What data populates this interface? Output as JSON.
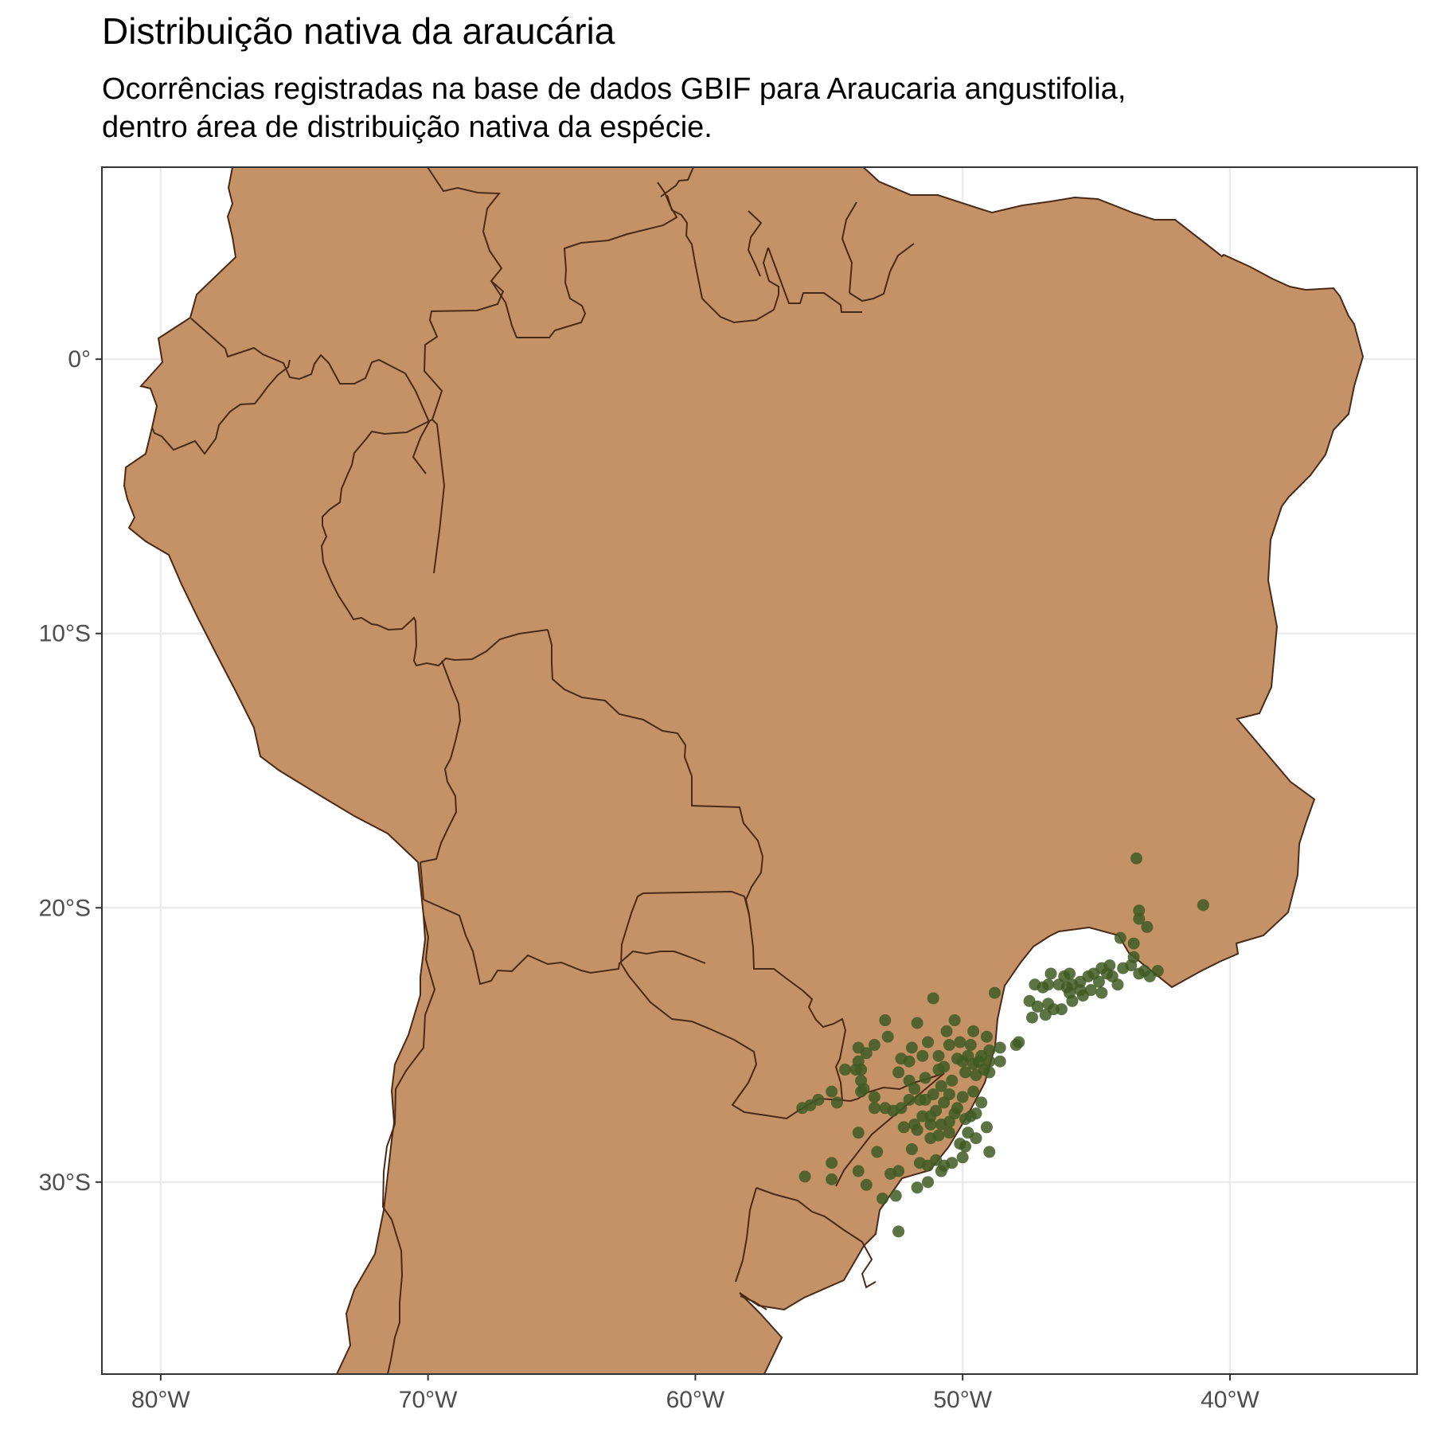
{
  "title": "Distribuição nativa da araucária",
  "subtitle_line1": "Ocorrências registradas na base de dados GBIF para Araucaria angustifolia,",
  "subtitle_line2": "dentro área de distribuição nativa da espécie.",
  "colors": {
    "land_fill": "#c49266",
    "border": "#4a2a17",
    "point": "#3f5a23",
    "grid": "#ebebeb",
    "panel_border": "#333333"
  },
  "map_extent": {
    "lon": [
      -82.2,
      -33.0
    ],
    "lat": [
      7.0,
      -37.0
    ]
  },
  "axes": {
    "x_ticks": [
      {
        "value": -80,
        "label": "80°W"
      },
      {
        "value": -70,
        "label": "70°W"
      },
      {
        "value": -60,
        "label": "60°W"
      },
      {
        "value": -50,
        "label": "50°W"
      },
      {
        "value": -40,
        "label": "40°W"
      }
    ],
    "y_ticks": [
      {
        "value": 0,
        "label": "0°"
      },
      {
        "value": -10,
        "label": "10°S"
      },
      {
        "value": -20,
        "label": "20°S"
      },
      {
        "value": -30,
        "label": "30°S"
      }
    ]
  },
  "occurrences": [
    [
      -43.5,
      -18.2
    ],
    [
      -41.0,
      -19.9
    ],
    [
      -43.4,
      -20.1
    ],
    [
      -43.4,
      -20.4
    ],
    [
      -43.1,
      -20.7
    ],
    [
      -44.1,
      -21.1
    ],
    [
      -43.6,
      -21.3
    ],
    [
      -43.6,
      -21.8
    ],
    [
      -43.7,
      -22.1
    ],
    [
      -42.7,
      -22.3
    ],
    [
      -43.0,
      -22.5
    ],
    [
      -43.4,
      -22.4
    ],
    [
      -44.0,
      -22.2
    ],
    [
      -44.5,
      -22.1
    ],
    [
      -44.8,
      -22.2
    ],
    [
      -45.1,
      -22.4
    ],
    [
      -45.3,
      -22.5
    ],
    [
      -45.6,
      -22.7
    ],
    [
      -45.9,
      -22.8
    ],
    [
      -46.1,
      -22.9
    ],
    [
      -46.4,
      -22.8
    ],
    [
      -46.8,
      -22.8
    ],
    [
      -47.0,
      -22.9
    ],
    [
      -46.7,
      -22.4
    ],
    [
      -46.0,
      -22.4
    ],
    [
      -44.4,
      -22.5
    ],
    [
      -44.2,
      -22.8
    ],
    [
      -44.8,
      -23.1
    ],
    [
      -45.2,
      -23.0
    ],
    [
      -45.5,
      -23.2
    ],
    [
      -45.9,
      -23.4
    ],
    [
      -46.3,
      -23.7
    ],
    [
      -46.8,
      -23.5
    ],
    [
      -47.2,
      -23.6
    ],
    [
      -46.6,
      -23.7
    ],
    [
      -46.9,
      -23.9
    ],
    [
      -47.5,
      -23.4
    ],
    [
      -47.4,
      -24.0
    ],
    [
      -48.0,
      -25.0
    ],
    [
      -48.8,
      -23.1
    ],
    [
      -49.1,
      -24.7
    ],
    [
      -49.6,
      -24.5
    ],
    [
      -50.1,
      -24.9
    ],
    [
      -50.5,
      -25.0
    ],
    [
      -50.2,
      -25.5
    ],
    [
      -49.8,
      -25.4
    ],
    [
      -49.4,
      -25.6
    ],
    [
      -49.2,
      -25.9
    ],
    [
      -49.0,
      -26.0
    ],
    [
      -49.5,
      -26.1
    ],
    [
      -49.9,
      -26.0
    ],
    [
      -50.4,
      -26.3
    ],
    [
      -50.9,
      -25.4
    ],
    [
      -51.3,
      -24.9
    ],
    [
      -51.5,
      -25.4
    ],
    [
      -51.9,
      -25.1
    ],
    [
      -52.0,
      -25.6
    ],
    [
      -52.3,
      -25.5
    ],
    [
      -52.4,
      -26.0
    ],
    [
      -52.0,
      -26.3
    ],
    [
      -51.8,
      -26.6
    ],
    [
      -51.4,
      -26.2
    ],
    [
      -50.8,
      -26.5
    ],
    [
      -50.5,
      -26.8
    ],
    [
      -50.0,
      -26.9
    ],
    [
      -49.6,
      -26.7
    ],
    [
      -49.3,
      -27.1
    ],
    [
      -49.5,
      -27.5
    ],
    [
      -49.9,
      -27.7
    ],
    [
      -50.3,
      -27.5
    ],
    [
      -50.7,
      -27.1
    ],
    [
      -51.0,
      -27.4
    ],
    [
      -51.2,
      -27.9
    ],
    [
      -51.5,
      -27.6
    ],
    [
      -51.7,
      -28.1
    ],
    [
      -51.2,
      -28.4
    ],
    [
      -50.9,
      -28.3
    ],
    [
      -50.5,
      -28.2
    ],
    [
      -50.1,
      -28.6
    ],
    [
      -49.8,
      -28.2
    ],
    [
      -49.5,
      -28.4
    ],
    [
      -49.1,
      -28.0
    ],
    [
      -49.0,
      -28.9
    ],
    [
      -50.0,
      -29.1
    ],
    [
      -50.4,
      -29.3
    ],
    [
      -50.7,
      -29.4
    ],
    [
      -51.0,
      -29.2
    ],
    [
      -51.3,
      -29.4
    ],
    [
      -51.6,
      -29.3
    ],
    [
      -51.9,
      -28.8
    ],
    [
      -52.4,
      -29.6
    ],
    [
      -52.7,
      -29.7
    ],
    [
      -53.2,
      -28.9
    ],
    [
      -52.3,
      -27.3
    ],
    [
      -52.6,
      -27.4
    ],
    [
      -52.9,
      -27.3
    ],
    [
      -53.3,
      -26.9
    ],
    [
      -53.7,
      -26.6
    ],
    [
      -53.8,
      -26.3
    ],
    [
      -54.0,
      -25.9
    ],
    [
      -54.4,
      -25.9
    ],
    [
      -53.9,
      -25.6
    ],
    [
      -53.6,
      -25.3
    ],
    [
      -53.9,
      -25.1
    ],
    [
      -53.3,
      -25.0
    ],
    [
      -52.8,
      -24.7
    ],
    [
      -52.9,
      -24.1
    ],
    [
      -51.7,
      -24.2
    ],
    [
      -51.1,
      -23.3
    ],
    [
      -50.3,
      -24.1
    ],
    [
      -49.0,
      -25.2
    ],
    [
      -48.6,
      -25.1
    ],
    [
      -49.7,
      -25.0
    ],
    [
      -50.6,
      -24.5
    ],
    [
      -50.9,
      -25.9
    ],
    [
      -51.1,
      -26.8
    ],
    [
      -51.6,
      -27.0
    ],
    [
      -50.2,
      -27.3
    ],
    [
      -49.7,
      -27.6
    ],
    [
      -51.4,
      -27.0
    ],
    [
      -52.0,
      -27.0
    ],
    [
      -53.3,
      -27.3
    ],
    [
      -53.8,
      -26.7
    ],
    [
      -53.8,
      -25.9
    ],
    [
      -54.9,
      -26.7
    ],
    [
      -55.4,
      -27.0
    ],
    [
      -55.7,
      -27.2
    ],
    [
      -56.0,
      -27.3
    ],
    [
      -54.7,
      -27.1
    ],
    [
      -53.9,
      -28.2
    ],
    [
      -54.9,
      -29.3
    ],
    [
      -55.9,
      -29.8
    ],
    [
      -54.9,
      -29.9
    ],
    [
      -53.9,
      -29.6
    ],
    [
      -53.6,
      -30.1
    ],
    [
      -53.0,
      -30.6
    ],
    [
      -52.5,
      -30.5
    ],
    [
      -52.4,
      -31.8
    ],
    [
      -51.7,
      -30.2
    ],
    [
      -51.3,
      -30.0
    ],
    [
      -50.8,
      -29.6
    ],
    [
      -49.9,
      -28.7
    ],
    [
      -50.5,
      -27.8
    ],
    [
      -50.8,
      -27.9
    ],
    [
      -51.2,
      -27.6
    ],
    [
      -51.8,
      -27.9
    ],
    [
      -52.2,
      -28.0
    ],
    [
      -49.3,
      -25.4
    ],
    [
      -49.6,
      -25.7
    ],
    [
      -50.0,
      -25.6
    ],
    [
      -50.7,
      -25.8
    ],
    [
      -49.0,
      -25.6
    ],
    [
      -48.6,
      -25.6
    ],
    [
      -47.9,
      -24.9
    ],
    [
      -45.6,
      -23.0
    ],
    [
      -44.9,
      -22.7
    ],
    [
      -46.2,
      -22.5
    ],
    [
      -44.6,
      -22.4
    ],
    [
      -43.2,
      -22.3
    ],
    [
      -47.3,
      -22.8
    ],
    [
      -46.0,
      -23.1
    ]
  ]
}
